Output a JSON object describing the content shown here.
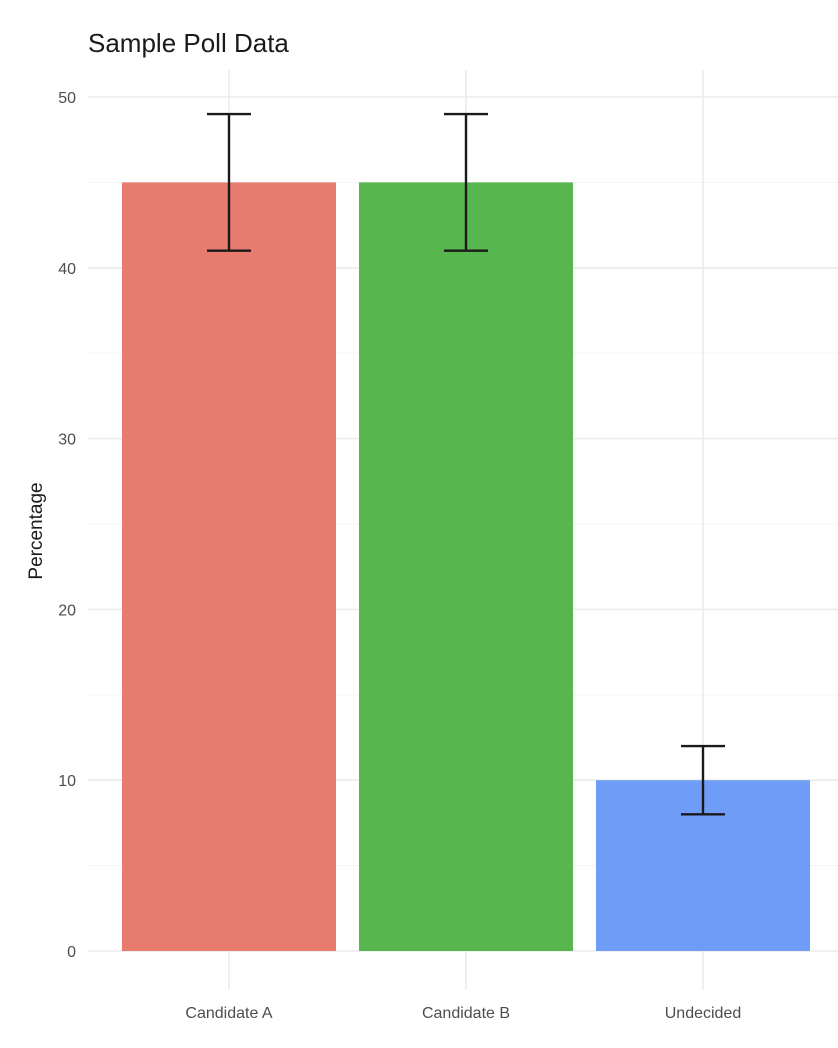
{
  "chart_data": {
    "type": "bar",
    "title": "Sample Poll Data",
    "xlabel": "",
    "ylabel": "Percentage",
    "categories": [
      "Candidate A",
      "Candidate B",
      "Undecided"
    ],
    "values": [
      45,
      45,
      10
    ],
    "error_low": [
      41,
      41,
      8
    ],
    "error_high": [
      49,
      49,
      12
    ],
    "colors": [
      "#E67B6E",
      "#57B64D",
      "#6E9CF7"
    ],
    "ylim": [
      0,
      50
    ],
    "yticks": [
      0,
      10,
      20,
      30,
      40,
      50
    ],
    "grid": true,
    "legend": "none"
  }
}
